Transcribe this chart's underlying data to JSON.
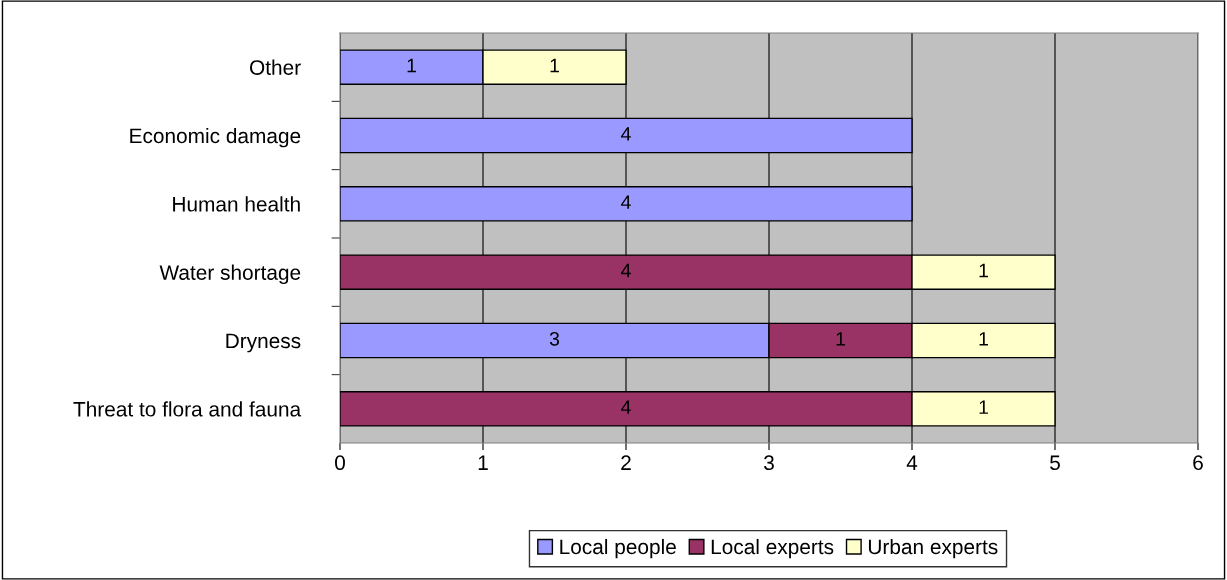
{
  "chart_data": {
    "type": "bar",
    "orientation": "horizontal",
    "stacked": true,
    "categories": [
      "Other",
      "Economic damage",
      "Human health",
      "Water shortage",
      "Dryness",
      "Threat to flora and fauna"
    ],
    "series": [
      {
        "name": "Local people",
        "color": "#9999ff",
        "values": [
          1,
          4,
          4,
          null,
          3,
          null
        ]
      },
      {
        "name": "Local experts",
        "color": "#993366",
        "values": [
          null,
          null,
          null,
          4,
          1,
          4
        ]
      },
      {
        "name": "Urban experts",
        "color": "#ffffcc",
        "values": [
          1,
          null,
          null,
          1,
          1,
          1
        ]
      }
    ],
    "xlim": [
      0,
      6
    ],
    "xticks": [
      0,
      1,
      2,
      3,
      4,
      5,
      6
    ],
    "grid": "x",
    "legend": "bottom",
    "data_labels": true
  }
}
